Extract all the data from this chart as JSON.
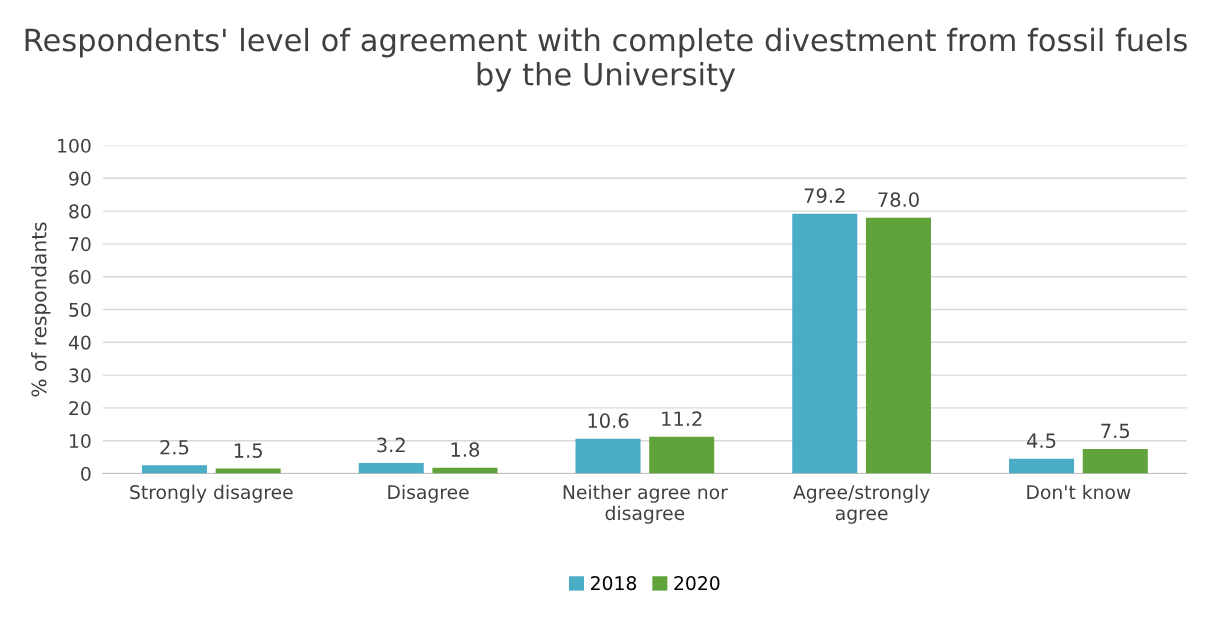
{
  "chart_data": {
    "type": "bar",
    "title": "Respondents' level of agreement with complete divestment from fossil fuels by the University",
    "ylabel": "% of respondants",
    "categories": [
      "Strongly disagree",
      "Disagree",
      "Neither agree nor disagree",
      "Agree/strongly agree",
      "Don't know"
    ],
    "series": [
      {
        "name": "2018",
        "color": "#4bacc6",
        "values": [
          2.5,
          3.2,
          10.6,
          79.2,
          4.5
        ],
        "value_labels": [
          "2.5",
          "3.2",
          "10.6",
          "79.2",
          "4.5"
        ]
      },
      {
        "name": "2020",
        "color": "#5fa33a",
        "values": [
          1.5,
          1.8,
          11.2,
          78.0,
          7.5
        ],
        "value_labels": [
          "1.5",
          "1.8",
          "11.2",
          "78.0",
          "7.5"
        ]
      }
    ],
    "ylim": [
      0,
      100
    ],
    "yticks": [
      0,
      10,
      20,
      30,
      40,
      50,
      60,
      70,
      80,
      90,
      100
    ],
    "grid": "y",
    "legend": "bottom"
  }
}
